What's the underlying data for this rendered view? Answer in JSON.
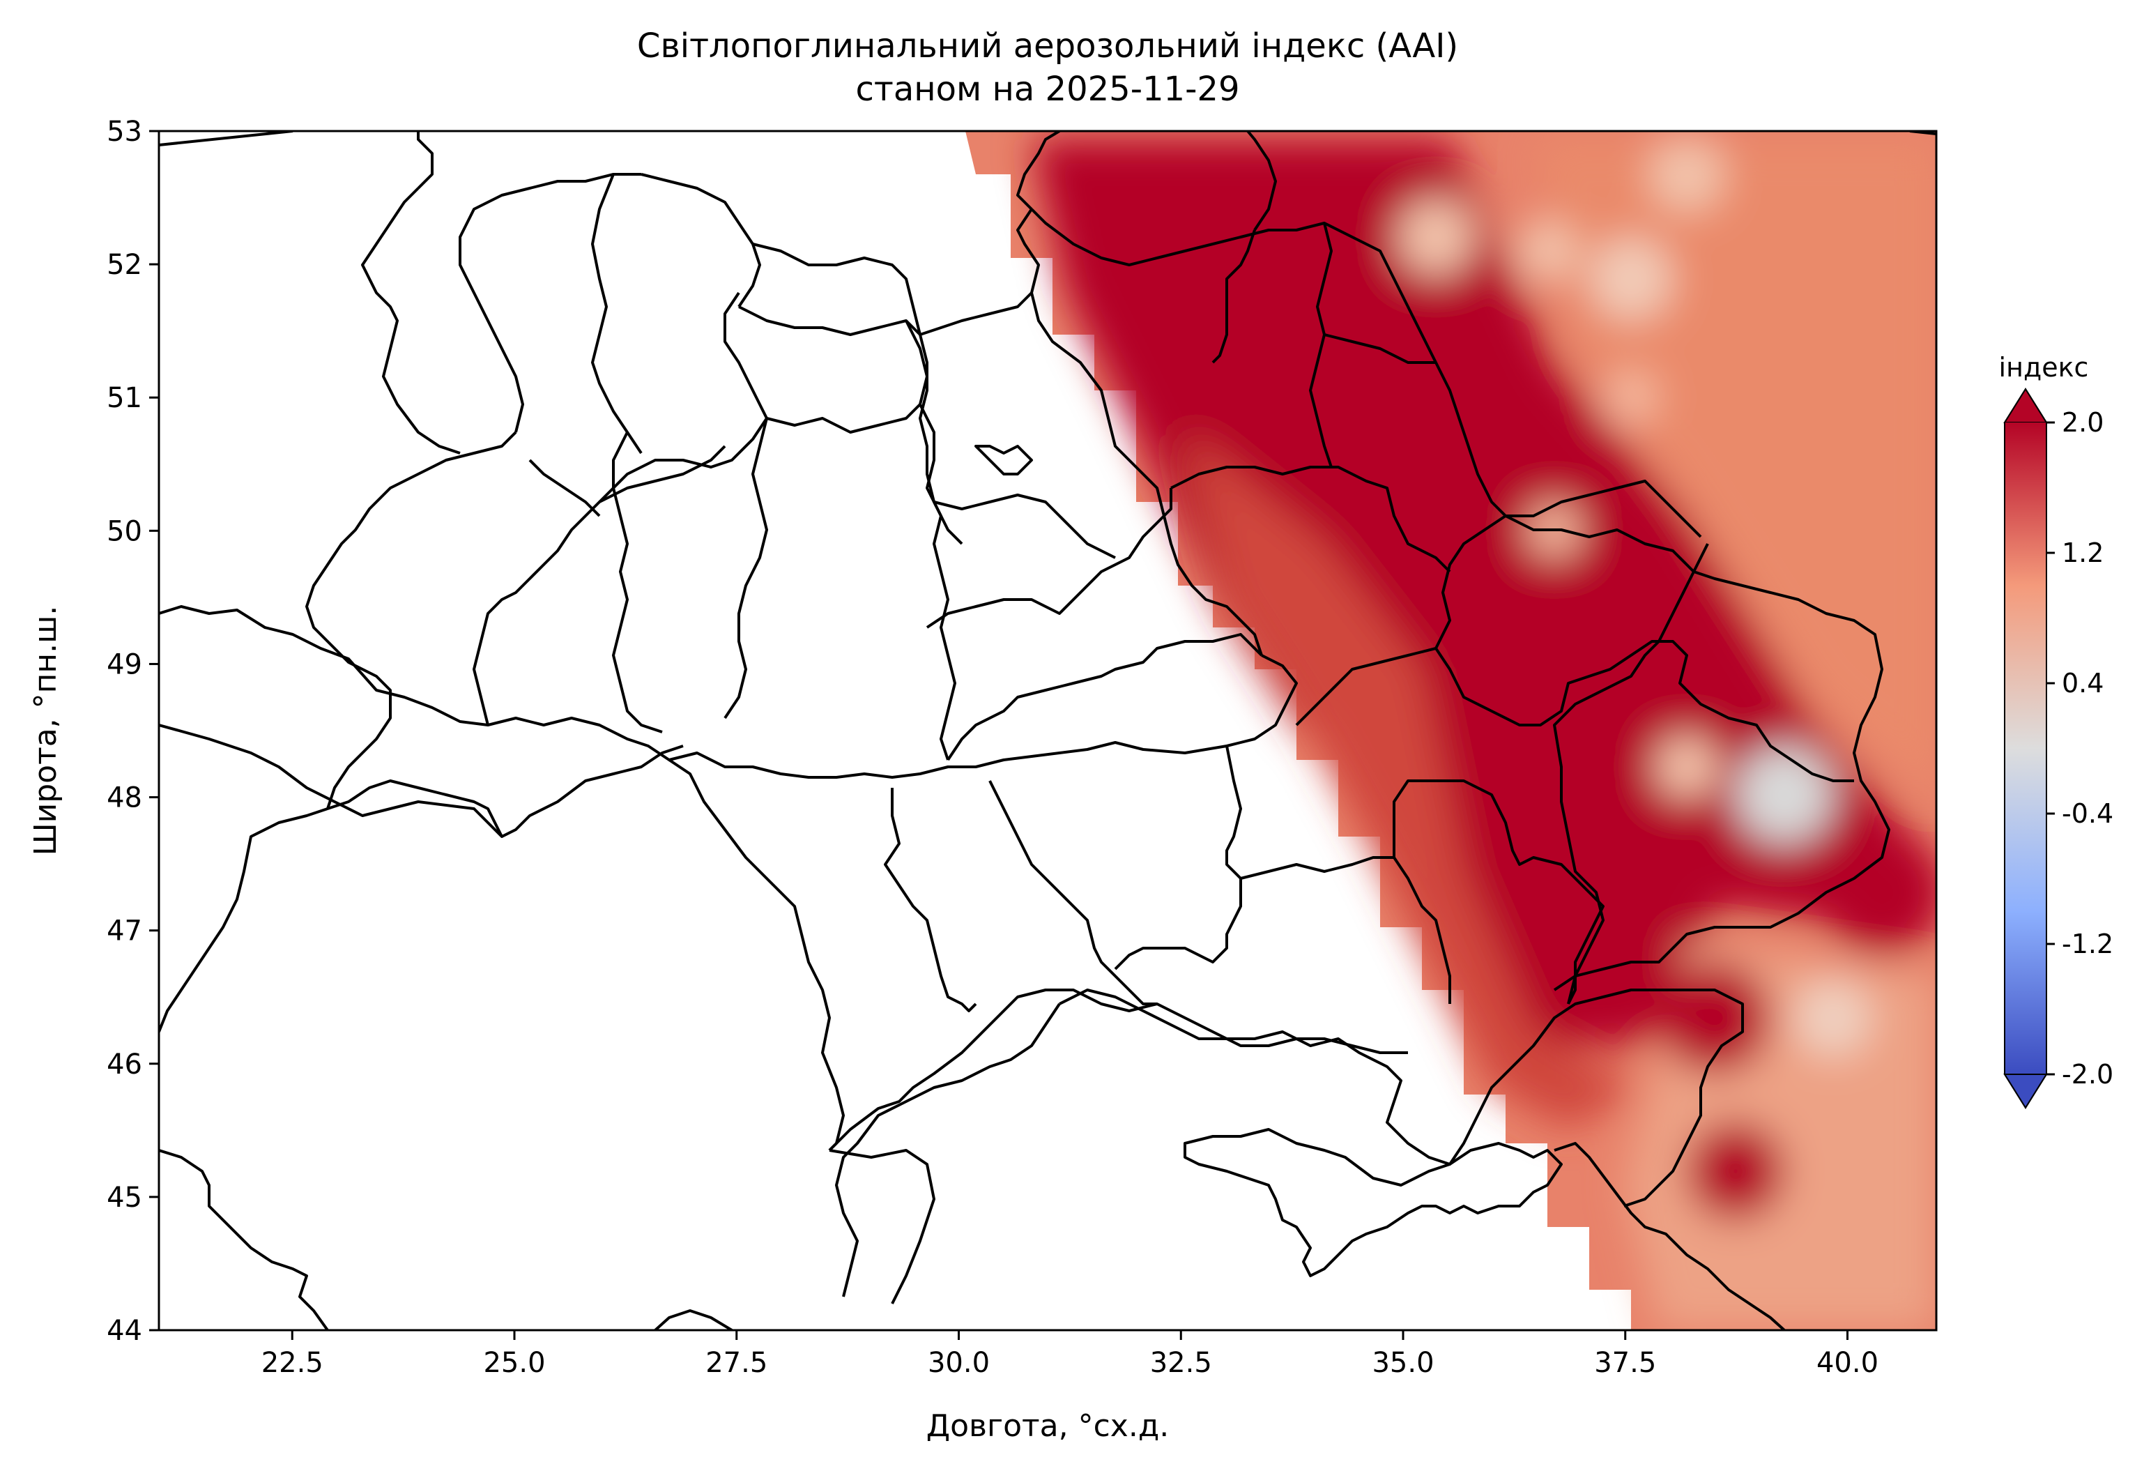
{
  "title_line1": "Світлопоглинальний аерозольний індекс (AAI)",
  "title_line2": "станом на 2025-11-29",
  "xlabel": "Довгота, °сх.д.",
  "ylabel": "Широта, °пн.ш.",
  "x_ticks": [
    "22.5",
    "25.0",
    "27.5",
    "30.0",
    "32.5",
    "35.0",
    "37.5",
    "40.0"
  ],
  "y_ticks": [
    "53",
    "52",
    "51",
    "50",
    "49",
    "48",
    "47",
    "46",
    "45",
    "44"
  ],
  "colorbar": {
    "label": "індекс",
    "ticks": [
      "2.0",
      "1.2",
      "0.4",
      "-0.4",
      "-1.2",
      "-2.0"
    ],
    "min": -2.0,
    "max": 2.0,
    "colormap": "coolwarm",
    "extend": "both"
  },
  "chart_data": {
    "type": "heatmap",
    "xlim": [
      21.0,
      41.0
    ],
    "ylim": [
      44.0,
      53.0
    ],
    "variable": "AAI",
    "date": "2025-11-29",
    "data_extent_note": "data only east of swath edge (approx. lon 30.0 at lat 53 to lon 38.0 at lat 44)",
    "hotspots": [
      {
        "lon": 33.5,
        "lat": 51.8,
        "value": 2.0
      },
      {
        "lon": 34.5,
        "lat": 51.0,
        "value": 2.0
      },
      {
        "lon": 36.0,
        "lat": 50.0,
        "value": 1.9
      },
      {
        "lon": 37.5,
        "lat": 48.0,
        "value": 1.9
      },
      {
        "lon": 39.5,
        "lat": 47.3,
        "value": 1.9
      },
      {
        "lon": 38.5,
        "lat": 46.4,
        "value": 1.8
      },
      {
        "lon": 38.8,
        "lat": 45.2,
        "value": 1.8
      }
    ],
    "low_spots": [
      {
        "lon": 35.5,
        "lat": 52.1,
        "value": 0.6
      },
      {
        "lon": 38.3,
        "lat": 52.6,
        "value": 0.5
      },
      {
        "lon": 37.5,
        "lat": 51.9,
        "value": 0.4
      },
      {
        "lon": 39.2,
        "lat": 48.1,
        "value": 0.1
      },
      {
        "lon": 39.8,
        "lat": 46.3,
        "value": 0.3
      }
    ]
  }
}
